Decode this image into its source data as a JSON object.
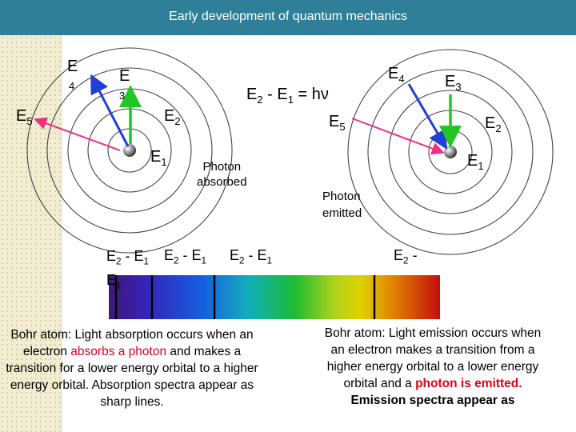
{
  "header": {
    "title": "Early development of quantum mechanics"
  },
  "left_atom": {
    "e4": "E",
    "e4_sub": "4",
    "e3": "E",
    "e3_sub": "3",
    "e5": "E",
    "e5_sub": "5",
    "e2": "E",
    "e2_sub": "2",
    "e1": "E",
    "e1_sub": "1",
    "caption_line1": "Photon",
    "caption_line2": "absorbed"
  },
  "right_atom": {
    "e4": "E",
    "e4_sub": "4",
    "e3": "E",
    "e3_sub": "3",
    "e5": "E",
    "e5_sub": "5",
    "e2": "E",
    "e2_sub": "2",
    "e1": "E",
    "e1_sub": "1",
    "caption_line1": "Photon",
    "caption_line2": "emitted"
  },
  "equation": {
    "a": "E",
    "a_sub": "2",
    "minus": " - E",
    "b_sub": "1",
    "rest": " = hν"
  },
  "spectrum_labels": {
    "l1_a": "E",
    "l1_a_sub": "2",
    "l1_mid": " - E",
    "l1_b_sub": "1",
    "l1_line2": "E",
    "l1_line2_sub": "1",
    "l2_a": "E",
    "l2_a_sub": "2",
    "l2_mid": " - E",
    "l2_b_sub": "1",
    "l3_a": "E",
    "l3_a_sub": "2",
    "l3_mid": " - E",
    "l3_b_sub": "1",
    "l4_a": "E",
    "l4_a_sub": "2",
    "l4_mid": " -"
  },
  "left_text": {
    "t1": "Bohr atom: Light absorption occurs when an electron ",
    "t1_red": "absorbs a photon",
    "t2": " and makes a transition for a lower energy orbital to a higher energy orbital. Absorption spectra appear as sharp lines."
  },
  "right_text": {
    "t1": "Bohr atom: Light emission occurs when an electron makes a transition from a higher energy orbital to a lower energy orbital and a ",
    "t1_red": "photon is emitted.",
    "t2": "Emission spectra appear as"
  },
  "colors": {
    "header": "#2f7f99",
    "arrow_blue": "#1f3fd6",
    "arrow_green": "#22c622",
    "arrow_pink": "#ee2f86",
    "red_text": "#e0001a"
  }
}
